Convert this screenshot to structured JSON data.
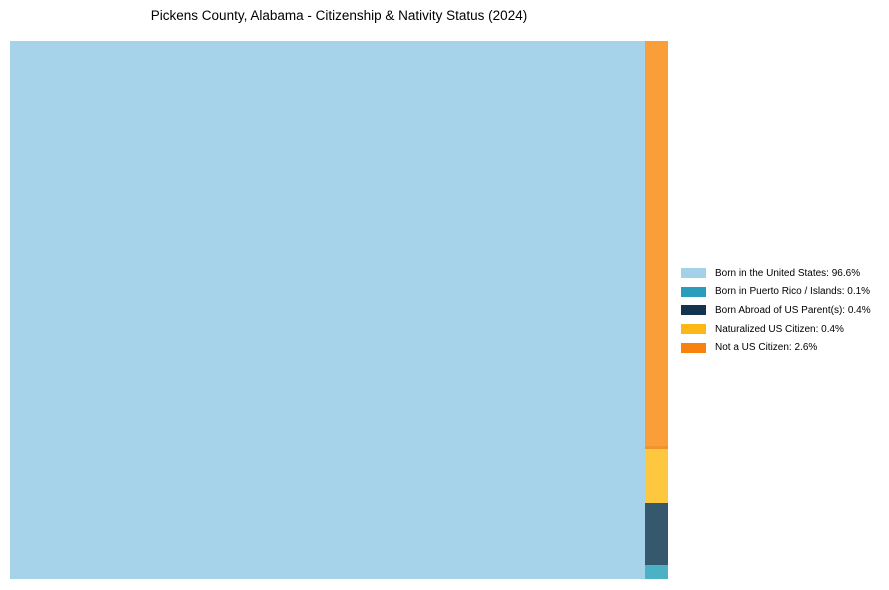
{
  "title": "Pickens County, Alabama - Citizenship & Nativity Status (2024)",
  "chart_data": {
    "type": "treemap",
    "title": "Pickens County, Alabama - Citizenship & Nativity Status (2024)",
    "unit": "%",
    "legend_position": "right",
    "categories": [
      "Born in the United States",
      "Born in Puerto Rico / Islands",
      "Born Abroad of US Parent(s)",
      "Naturalized US Citizen",
      "Not a US Citizen"
    ],
    "values": [
      96.6,
      0.1,
      0.4,
      0.4,
      2.6
    ]
  },
  "treemap": {
    "blocks": [
      {
        "label": "Born in the United States",
        "value": 96.6,
        "color": "#A6D3EA"
      },
      {
        "label": "Not a US Citizen",
        "value": 2.6,
        "color": "#F99E38",
        "edge_color": "#F3932D"
      },
      {
        "label": "Naturalized US Citizen",
        "value": 0.4,
        "color": "#FDC73F"
      },
      {
        "label": "Born Abroad of US Parent(s)",
        "value": 0.4,
        "color": "#36586C"
      },
      {
        "label": "Born in Puerto Rico / Islands",
        "value": 0.1,
        "color": "#4DB1C5"
      }
    ]
  },
  "legend": {
    "items": [
      {
        "label": "Born in the United States: 96.6%",
        "color": "#A2D1E9"
      },
      {
        "label": "Born in Puerto Rico / Islands: 0.1%",
        "color": "#2B9DBC"
      },
      {
        "label": "Born Abroad of US Parent(s): 0.4%",
        "color": "#12344E"
      },
      {
        "label": "Naturalized US Citizen: 0.4%",
        "color": "#FCB817"
      },
      {
        "label": "Not a US Citizen: 2.6%",
        "color": "#F7820E"
      }
    ]
  },
  "colors": {
    "background": "#FFFFFF",
    "text": "#000000"
  }
}
